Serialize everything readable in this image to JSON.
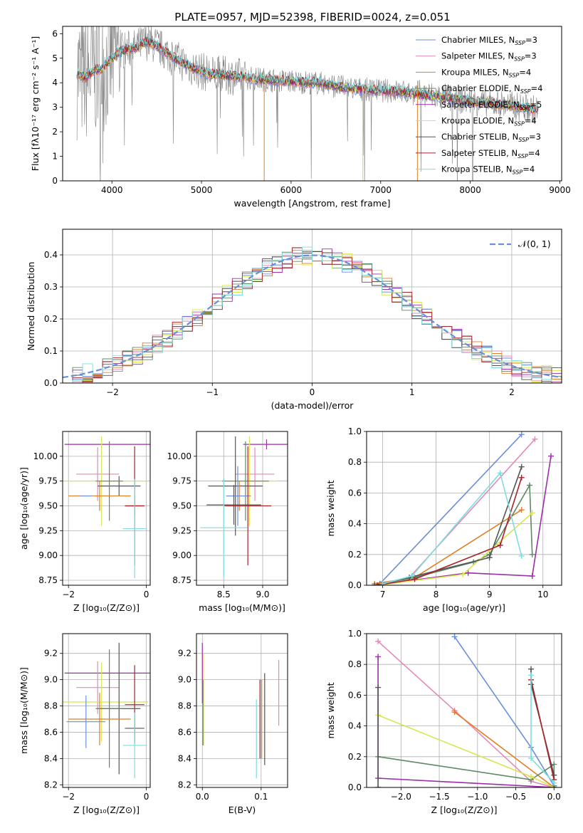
{
  "title": "PLATE=0957, MJD=52398, FIBERID=0024, z=0.051",
  "colors": {
    "Chabrier MILES": "#6a8fd8",
    "Salpeter MILES": "#e489b8",
    "Kroupa MILES": "#e07f25",
    "Chabrier ELODIE": "#5e8a63",
    "Salpeter ELODIE": "#9a2fa8",
    "Kroupa ELODIE": "#d8e650",
    "Chabrier STELIB": "#555555",
    "Salpeter STELIB": "#a8222a",
    "Kroupa STELIB": "#7fdde0",
    "data": "#808080",
    "normal": "#6a8fd8"
  },
  "chart_data": [
    {
      "id": "spectrum",
      "type": "line",
      "title": "PLATE=0957, MJD=52398, FIBERID=0024, z=0.051",
      "xlabel": "wavelength [Angstrom, rest frame]",
      "ylabel": "Flux [fλ10⁻¹⁷ erg cm⁻² s⁻¹ A⁻¹]",
      "xlim": [
        3450,
        9020
      ],
      "ylim": [
        0,
        6.3
      ],
      "xticks": [
        4000,
        5000,
        6000,
        7000,
        8000,
        9000
      ],
      "yticks": [
        0,
        1,
        2,
        3,
        4,
        5,
        6
      ],
      "legend_position": "top-right",
      "continuum": [
        [
          3610,
          4.4
        ],
        [
          3700,
          4.2
        ],
        [
          3800,
          4.5
        ],
        [
          3900,
          4.6
        ],
        [
          3970,
          4.9
        ],
        [
          4100,
          5.3
        ],
        [
          4250,
          5.4
        ],
        [
          4400,
          5.7
        ],
        [
          4500,
          5.5
        ],
        [
          4700,
          5.0
        ],
        [
          4900,
          4.6
        ],
        [
          5100,
          4.35
        ],
        [
          5300,
          4.3
        ],
        [
          5500,
          4.2
        ],
        [
          5800,
          4.1
        ],
        [
          6000,
          4.05
        ],
        [
          6300,
          4.0
        ],
        [
          6600,
          3.8
        ],
        [
          6900,
          3.7
        ],
        [
          7200,
          3.65
        ],
        [
          7500,
          3.5
        ],
        [
          7800,
          3.35
        ],
        [
          8100,
          3.2
        ],
        [
          8400,
          3.1
        ],
        [
          8750,
          2.9
        ]
      ],
      "series": [
        {
          "name": "Chabrier MILES, N_SSP=3",
          "nssp": "3"
        },
        {
          "name": "Salpeter MILES, N_SSP=3",
          "nssp": "3"
        },
        {
          "name": "Kroupa MILES, N_SSP=4",
          "nssp": "4"
        },
        {
          "name": "Chabrier ELODIE, N_SSP=4",
          "nssp": "4"
        },
        {
          "name": "Salpeter ELODIE, N_SSP=5",
          "nssp": "5"
        },
        {
          "name": "Kroupa ELODIE, N_SSP=4",
          "nssp": "4"
        },
        {
          "name": "Chabrier STELIB, N_SSP=3",
          "nssp": "3"
        },
        {
          "name": "Salpeter STELIB, N_SSP=4",
          "nssp": "4"
        },
        {
          "name": "Kroupa STELIB, N_SSP=4",
          "nssp": "4"
        }
      ],
      "legend_labels": [
        {
          "prefix": "Chabrier MILES, N",
          "nssp": "3"
        },
        {
          "prefix": "Salpeter MILES, N",
          "nssp": "3"
        },
        {
          "prefix": "Kroupa MILES, N",
          "nssp": "4"
        },
        {
          "prefix": "Chabrier ELODIE, N",
          "nssp": "4"
        },
        {
          "prefix": "Salpeter ELODIE, N",
          "nssp": "5"
        },
        {
          "prefix": "Kroupa ELODIE, N",
          "nssp": "4"
        },
        {
          "prefix": "Chabrier STELIB, N",
          "nssp": "3"
        },
        {
          "prefix": "Salpeter STELIB, N",
          "nssp": "4"
        },
        {
          "prefix": "Kroupa STELIB, N",
          "nssp": "4"
        }
      ],
      "ssp_subscript": "SSP"
    },
    {
      "id": "residuals",
      "type": "line",
      "xlabel": "(data-model)/error",
      "ylabel": "Normed distribution",
      "xlim": [
        -2.5,
        2.5
      ],
      "ylim": [
        0,
        0.48
      ],
      "xticks": [
        -2,
        -1,
        0,
        1,
        2
      ],
      "yticks": [
        0.0,
        0.1,
        0.2,
        0.3,
        0.4
      ],
      "grid": true,
      "legend_label": "𝒩(0, 1)",
      "legend_position": "top-right",
      "bin_width": 0.1
    },
    {
      "id": "age_vs_Z",
      "type": "scatter",
      "xlabel": "Z [log₁₀(Z/Z⊙)]",
      "ylabel": "age  [log₁₀(age/yr)]",
      "xlim": [
        -2.15,
        0.1
      ],
      "ylim": [
        8.7,
        10.25
      ],
      "xticks": [
        -2,
        0
      ],
      "yticks": [
        8.75,
        9.0,
        9.25,
        9.5,
        9.75,
        10.0
      ],
      "grid": true,
      "points": [
        {
          "s": "Salpeter ELODIE",
          "x": -1.0,
          "xerr": 1.1,
          "y": 10.12,
          "yerr": 0.0
        },
        {
          "s": "Salpeter MILES",
          "x": -1.25,
          "xerr": 0.55,
          "y": 9.82,
          "yerr": 0.27
        },
        {
          "s": "Kroupa ELODIE",
          "x": -1.15,
          "xerr": 1.2,
          "y": 9.75,
          "yerr": 0.45
        },
        {
          "s": "Chabrier STELIB",
          "x": -0.7,
          "xerr": 0.55,
          "y": 9.7,
          "yerr": 0.1
        },
        {
          "s": "Chabrier ELODIE",
          "x": -0.95,
          "xerr": 0.35,
          "y": 9.75,
          "yerr": 0.4
        },
        {
          "s": "Kroupa MILES",
          "x": -1.2,
          "xerr": 0.8,
          "y": 9.6,
          "yerr": 0.15
        },
        {
          "s": "Chabrier MILES",
          "x": -1.55,
          "xerr": 0.15,
          "y": 9.6,
          "yerr": 0.0
        },
        {
          "s": "Chabrier STELIB",
          "x": -0.3,
          "xerr": 0.25,
          "y": 9.5,
          "yerr": 0.1
        },
        {
          "s": "Salpeter STELIB",
          "x": -0.3,
          "xerr": 0.25,
          "y": 9.5,
          "yerr": 0.6
        },
        {
          "s": "Kroupa STELIB",
          "x": -0.3,
          "xerr": 0.3,
          "y": 9.27,
          "yerr": 0.5
        }
      ]
    },
    {
      "id": "age_vs_mass",
      "type": "scatter",
      "xlabel": "mass [log₁₀(M/M⊙)]",
      "ylabel": "",
      "xlim": [
        8.15,
        9.32
      ],
      "ylim": [
        8.7,
        10.25
      ],
      "xticks": [
        8.5,
        9.0
      ],
      "yticks": [
        8.75,
        9.0,
        9.25,
        9.5,
        9.75,
        10.0
      ],
      "grid": true,
      "points": [
        {
          "s": "Salpeter ELODIE",
          "x": 9.05,
          "xerr": 0.3,
          "y": 10.12,
          "yerr": 0.05
        },
        {
          "s": "Salpeter MILES",
          "x": 8.9,
          "xerr": 0.25,
          "y": 9.82,
          "yerr": 0.27
        },
        {
          "s": "Kroupa ELODIE",
          "x": 8.83,
          "xerr": 0.35,
          "y": 9.75,
          "yerr": 0.45
        },
        {
          "s": "Chabrier ELODIE",
          "x": 8.78,
          "xerr": 0.3,
          "y": 9.75,
          "yerr": 0.4
        },
        {
          "s": "Chabrier STELIB",
          "x": 8.65,
          "xerr": 0.35,
          "y": 9.7,
          "yerr": 0.5
        },
        {
          "s": "Kroupa MILES",
          "x": 8.7,
          "xerr": 0.15,
          "y": 9.6,
          "yerr": 0.15
        },
        {
          "s": "Chabrier MILES",
          "x": 8.68,
          "xerr": 0.15,
          "y": 9.6,
          "yerr": 0.3
        },
        {
          "s": "Chabrier STELIB",
          "x": 8.63,
          "xerr": 0.35,
          "y": 9.51,
          "yerr": 0.2
        },
        {
          "s": "Salpeter STELIB",
          "x": 8.81,
          "xerr": 0.3,
          "y": 9.5,
          "yerr": 0.6
        },
        {
          "s": "Kroupa STELIB",
          "x": 8.5,
          "xerr": 0.3,
          "y": 9.28,
          "yerr": 0.5
        }
      ]
    },
    {
      "id": "massweight_vs_age",
      "type": "line",
      "xlabel": "age  [log₁₀(age/yr)]",
      "ylabel": "mass weight",
      "xlim": [
        6.7,
        10.35
      ],
      "ylim": [
        0,
        1.0
      ],
      "xticks": [
        7,
        8,
        9,
        10
      ],
      "yticks": [
        0.0,
        0.2,
        0.4,
        0.6,
        0.8,
        1.0
      ],
      "grid": true,
      "series": [
        {
          "s": "Chabrier MILES",
          "points": [
            [
              6.95,
              0.01
            ],
            [
              9.6,
              0.98
            ]
          ]
        },
        {
          "s": "Salpeter MILES",
          "points": [
            [
              6.9,
              0.0
            ],
            [
              7.5,
              0.05
            ],
            [
              9.85,
              0.95
            ]
          ]
        },
        {
          "s": "Kroupa MILES",
          "points": [
            [
              6.85,
              0.01
            ],
            [
              7.6,
              0.05
            ],
            [
              9.6,
              0.49
            ]
          ]
        },
        {
          "s": "Chabrier ELODIE",
          "points": [
            [
              6.95,
              0.01
            ],
            [
              7.6,
              0.05
            ],
            [
              8.7,
              0.15
            ],
            [
              9.0,
              0.2
            ],
            [
              9.75,
              0.65
            ],
            [
              9.8,
              0.2
            ]
          ]
        },
        {
          "s": "Salpeter ELODIE",
          "points": [
            [
              6.85,
              0.0
            ],
            [
              8.6,
              0.08
            ],
            [
              9.8,
              0.06
            ],
            [
              10.15,
              0.84
            ]
          ]
        },
        {
          "s": "Kroupa ELODIE",
          "points": [
            [
              6.9,
              0.0
            ],
            [
              8.5,
              0.07
            ],
            [
              9.8,
              0.47
            ]
          ]
        },
        {
          "s": "Chabrier STELIB",
          "points": [
            [
              6.85,
              0.0
            ],
            [
              7.5,
              0.05
            ],
            [
              9.0,
              0.18
            ],
            [
              9.6,
              0.77
            ]
          ]
        },
        {
          "s": "Salpeter STELIB",
          "points": [
            [
              6.9,
              0.0
            ],
            [
              7.6,
              0.04
            ],
            [
              9.2,
              0.26
            ],
            [
              9.6,
              0.7
            ]
          ]
        },
        {
          "s": "Kroupa STELIB",
          "points": [
            [
              7.0,
              0.01
            ],
            [
              7.55,
              0.06
            ],
            [
              9.2,
              0.73
            ],
            [
              9.6,
              0.19
            ]
          ]
        }
      ]
    },
    {
      "id": "mass_vs_Z",
      "type": "scatter",
      "xlabel": "Z [log₁₀(Z/Z⊙)]",
      "ylabel": "mass [log₁₀(M/M⊙)]",
      "xlim": [
        -2.15,
        0.1
      ],
      "ylim": [
        8.18,
        9.35
      ],
      "xticks": [
        -2,
        0
      ],
      "yticks": [
        8.2,
        8.4,
        8.6,
        8.8,
        9.0,
        9.2
      ],
      "grid": true,
      "points": [
        {
          "s": "Salpeter ELODIE",
          "x": -1.0,
          "xerr": 1.1,
          "y": 9.05,
          "yerr": 0.0
        },
        {
          "s": "Salpeter MILES",
          "x": -1.25,
          "xerr": 0.55,
          "y": 8.94,
          "yerr": 0.2
        },
        {
          "s": "Kroupa ELODIE",
          "x": -1.15,
          "xerr": 1.2,
          "y": 8.83,
          "yerr": 0.3
        },
        {
          "s": "Salpeter STELIB",
          "x": -0.3,
          "xerr": 0.25,
          "y": 8.81,
          "yerr": 0.3
        },
        {
          "s": "Chabrier STELIB",
          "x": -0.7,
          "xerr": 0.55,
          "y": 8.78,
          "yerr": 0.5
        },
        {
          "s": "Chabrier ELODIE",
          "x": -0.95,
          "xerr": 0.35,
          "y": 8.78,
          "yerr": 0.45
        },
        {
          "s": "Kroupa MILES",
          "x": -1.2,
          "xerr": 0.8,
          "y": 8.7,
          "yerr": 0.2
        },
        {
          "s": "Chabrier MILES",
          "x": -1.55,
          "xerr": 0.5,
          "y": 8.68,
          "yerr": 0.2
        },
        {
          "s": "Chabrier STELIB",
          "x": -0.3,
          "xerr": 0.25,
          "y": 8.63,
          "yerr": 0.1
        },
        {
          "s": "Kroupa STELIB",
          "x": -0.3,
          "xerr": 0.3,
          "y": 8.5,
          "yerr": 0.25
        }
      ]
    },
    {
      "id": "mass_vs_EBV",
      "type": "scatter",
      "xlabel": "E(B-V)",
      "ylabel": "",
      "xlim": [
        -0.01,
        0.145
      ],
      "ylim": [
        8.18,
        9.35
      ],
      "xticks": [
        0.0,
        0.1
      ],
      "yticks": [
        8.2,
        8.4,
        8.6,
        8.8,
        9.0,
        9.2
      ],
      "grid": true,
      "points": [
        {
          "s": "Salpeter ELODIE",
          "x": 0.0,
          "y": 9.05,
          "yerr": 0.23
        },
        {
          "s": "Kroupa ELODIE",
          "x": 0.002,
          "y": 8.85,
          "yerr": 0.35
        },
        {
          "s": "Chabrier ELODIE",
          "x": 0.001,
          "y": 8.75,
          "yerr": 0.25
        },
        {
          "s": "Kroupa STELIB",
          "x": 0.092,
          "y": 8.55,
          "yerr": 0.3
        },
        {
          "s": "Salpeter STELIB",
          "x": 0.098,
          "y": 8.7,
          "yerr": 0.3
        },
        {
          "s": "Kroupa MILES",
          "x": 0.101,
          "y": 8.7,
          "yerr": 0.3
        },
        {
          "s": "Chabrier STELIB",
          "x": 0.106,
          "y": 8.7,
          "yerr": 0.35
        },
        {
          "s": "Salpeter MILES",
          "x": 0.13,
          "y": 8.9,
          "yerr": 0.25
        }
      ]
    },
    {
      "id": "massweight_vs_Z",
      "type": "line",
      "xlabel": "Z [log₁₀(Z/Z⊙)]",
      "ylabel": "mass weight",
      "xlim": [
        -2.45,
        0.1
      ],
      "ylim": [
        0,
        1.0
      ],
      "xticks": [
        -2.0,
        -1.5,
        -1.0,
        -0.5,
        0.0
      ],
      "yticks": [
        0.0,
        0.2,
        0.4,
        0.6,
        0.8,
        1.0
      ],
      "grid": true,
      "series": [
        {
          "s": "Chabrier MILES",
          "points": [
            [
              -1.3,
              0.98
            ],
            [
              -0.3,
              0.26
            ],
            [
              0.0,
              0.01
            ]
          ]
        },
        {
          "s": "Salpeter MILES",
          "points": [
            [
              -2.3,
              0.95
            ],
            [
              -1.3,
              0.5
            ],
            [
              -0.3,
              0.04
            ],
            [
              0.0,
              0.0
            ]
          ]
        },
        {
          "s": "Kroupa MILES",
          "points": [
            [
              -1.3,
              0.49
            ],
            [
              0.0,
              0.0
            ]
          ]
        },
        {
          "s": "Chabrier ELODIE",
          "points": [
            [
              -2.3,
              0.2
            ],
            [
              -0.3,
              0.05
            ],
            [
              0.0,
              0.15
            ],
            [
              0.0,
              0.01
            ]
          ]
        },
        {
          "s": "Salpeter ELODIE",
          "points": [
            [
              -2.3,
              0.85
            ],
            [
              -2.3,
              0.06
            ],
            [
              0.0,
              0.0
            ]
          ]
        },
        {
          "s": "Kroupa ELODIE",
          "points": [
            [
              -2.3,
              0.47
            ],
            [
              -0.3,
              0.07
            ],
            [
              0.0,
              0.0
            ]
          ]
        },
        {
          "s": "Chabrier STELIB",
          "points": [
            [
              -2.3,
              0.65
            ],
            [
              -2.3,
              0.0
            ]
          ]
        },
        {
          "s": "Chabrier STELIB",
          "points": [
            [
              -0.3,
              0.77
            ],
            [
              -0.3,
              0.67
            ],
            [
              0.0,
              0.08
            ],
            [
              0.0,
              0.0
            ]
          ]
        },
        {
          "s": "Salpeter STELIB",
          "points": [
            [
              -0.3,
              0.7
            ],
            [
              0.0,
              0.05
            ]
          ]
        },
        {
          "s": "Kroupa STELIB",
          "points": [
            [
              -0.3,
              0.73
            ],
            [
              -0.3,
              0.19
            ],
            [
              0.0,
              0.03
            ]
          ]
        }
      ]
    }
  ]
}
